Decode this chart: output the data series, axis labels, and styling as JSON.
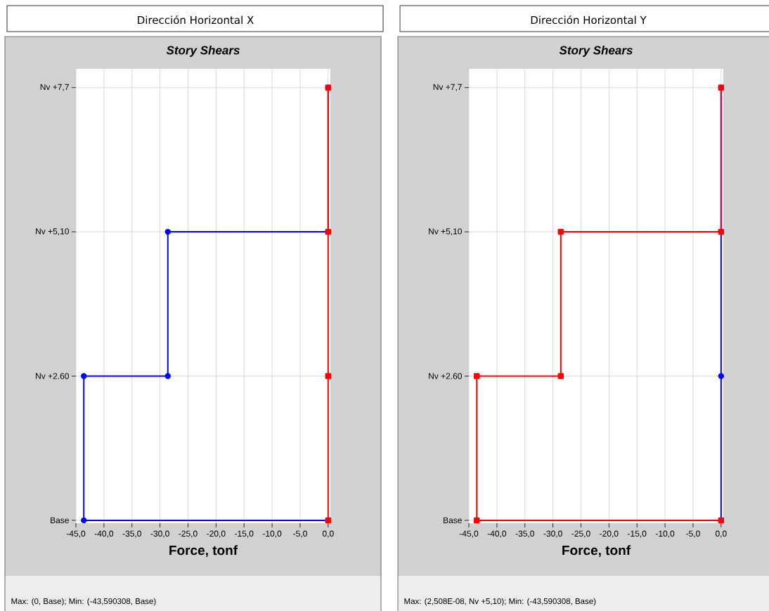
{
  "chart_data": [
    {
      "type": "line",
      "orientation": "horizontal",
      "title": "Dirección Horizontal X",
      "subtitle": "Story Shears",
      "xlabel": "Force, tonf",
      "xlim": [
        -45,
        0.4
      ],
      "xticks": [
        {
          "value": -45,
          "label": "-45,0"
        },
        {
          "value": -40,
          "label": "-40,0"
        },
        {
          "value": -35,
          "label": "-35,0"
        },
        {
          "value": -30,
          "label": "-30,0"
        },
        {
          "value": -25,
          "label": "-25,0"
        },
        {
          "value": -20,
          "label": "-20,0"
        },
        {
          "value": -15,
          "label": "-15,0"
        },
        {
          "value": -10,
          "label": "-10,0"
        },
        {
          "value": -5,
          "label": "-5,0"
        },
        {
          "value": 0,
          "label": "0,0"
        }
      ],
      "categories": [
        "Nv +7,7",
        "Nv +5,10",
        "Nv +2.60",
        "Base"
      ],
      "grid": true,
      "series": [
        {
          "color": "#0000ff",
          "marker": "circle",
          "x": [
            "Base",
            "Base",
            "Nv +2.60",
            "Nv +2.60",
            "Nv +5,10",
            "Nv +5,10",
            "Nv +7,7"
          ],
          "values": [
            0,
            -43.59,
            -43.59,
            -28.6,
            -28.6,
            0,
            0
          ]
        },
        {
          "color": "#ff0000",
          "marker": "square",
          "x": [
            "Base",
            "Nv +2.60",
            "Nv +5,10",
            "Nv +7,7"
          ],
          "values": [
            0,
            0,
            0,
            0
          ]
        }
      ],
      "annotations": [
        "Max: (0, Base);   Min: (-43,590308, Base)"
      ]
    },
    {
      "type": "line",
      "orientation": "horizontal",
      "title": "Dirección Horizontal Y",
      "subtitle": "Story Shears",
      "xlabel": "Force, tonf",
      "xlim": [
        -45,
        0.4
      ],
      "xticks": [
        {
          "value": -45,
          "label": "-45,0"
        },
        {
          "value": -40,
          "label": "-40,0"
        },
        {
          "value": -35,
          "label": "-35,0"
        },
        {
          "value": -30,
          "label": "-30,0"
        },
        {
          "value": -25,
          "label": "-25,0"
        },
        {
          "value": -20,
          "label": "-20,0"
        },
        {
          "value": -15,
          "label": "-15,0"
        },
        {
          "value": -10,
          "label": "-10,0"
        },
        {
          "value": -5,
          "label": "-5,0"
        },
        {
          "value": 0,
          "label": "0,0"
        }
      ],
      "categories": [
        "Nv +7,7",
        "Nv +5,10",
        "Nv +2.60",
        "Base"
      ],
      "grid": true,
      "series": [
        {
          "color": "#0000ff",
          "marker": "circle",
          "x": [
            "Base",
            "Nv +2.60",
            "Nv +5,10",
            "Nv +7,7"
          ],
          "values": [
            0,
            0,
            0,
            0
          ]
        },
        {
          "color": "#ff0000",
          "marker": "square",
          "x": [
            "Base",
            "Base",
            "Nv +2.60",
            "Nv +2.60",
            "Nv +5,10",
            "Nv +5,10",
            "Nv +7,7"
          ],
          "values": [
            0,
            -43.59,
            -43.59,
            -28.6,
            -28.6,
            0,
            0
          ]
        }
      ],
      "annotations": [
        "Max: (2,508E-08, Nv +5,10);   Min: (-43,590308, Base)"
      ]
    }
  ]
}
